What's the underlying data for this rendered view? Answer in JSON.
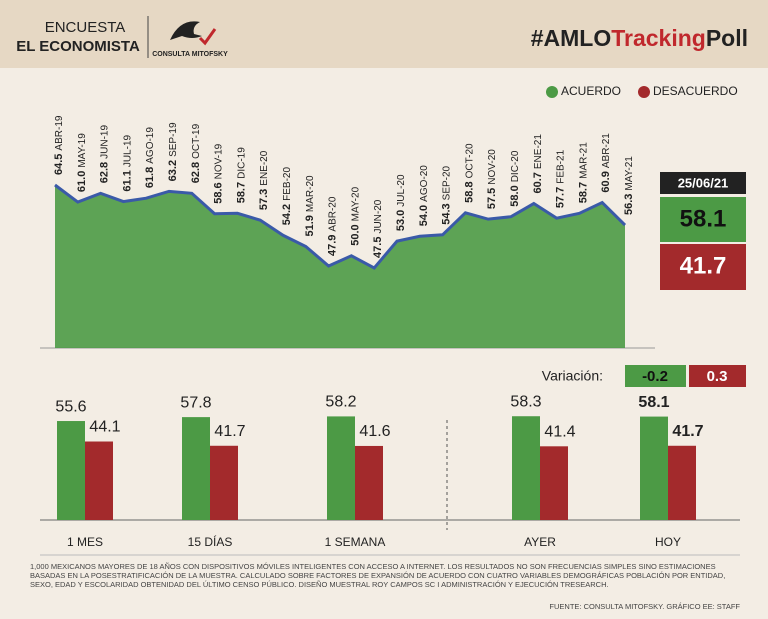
{
  "header": {
    "left_top": "ENCUESTA",
    "left_bottom": "EL ECONOMISTA",
    "logo": "CONSULTA MITOFSKY",
    "hashtag_prefix": "#AMLO",
    "hashtag_highlight": "Tracking",
    "hashtag_suffix": "Poll"
  },
  "chart_data": [
    {
      "type": "line",
      "legend": [
        {
          "name": "ACUERDO",
          "color": "#4c9a45"
        },
        {
          "name": "DESACUERDO",
          "color": "#a32a2c"
        }
      ],
      "categories": [
        "ABR-19",
        "MAY-19",
        "JUN-19",
        "JUL-19",
        "AGO-19",
        "SEP-19",
        "OCT-19",
        "NOV-19",
        "DIC-19",
        "ENE-20",
        "FEB-20",
        "MAR-20",
        "ABR-20",
        "MAY-20",
        "JUN-20",
        "JUL-20",
        "AGO-20",
        "SEP-20",
        "OCT-20",
        "NOV-20",
        "DIC-20",
        "ENE-21",
        "FEB-21",
        "MAR-21",
        "ABR-21",
        "MAY-21"
      ],
      "series": [
        {
          "name": "ACUERDO",
          "color": "#3a5aa8",
          "area_color": "#4c9a45",
          "values": [
            64.5,
            61.0,
            62.8,
            61.1,
            61.8,
            63.2,
            62.8,
            58.6,
            58.7,
            57.3,
            54.2,
            51.9,
            47.9,
            50.0,
            47.5,
            53.0,
            54.0,
            54.3,
            58.8,
            57.5,
            58.0,
            60.7,
            57.7,
            58.7,
            60.9,
            56.3
          ],
          "value_labels": [
            "64.5",
            "61.0",
            "62.8",
            "61.1",
            "61.8",
            "63.2",
            "62.8",
            "58.6",
            "58.7",
            "57.3",
            "54.2",
            "51.9",
            "47.9",
            "50.0",
            "47.5",
            "53.0",
            "54.0",
            "54.3",
            "58.8",
            "57.5",
            "58.0",
            "60.7",
            "57.7",
            "58.7",
            "60.9",
            "56.3"
          ]
        }
      ]
    },
    {
      "type": "bar",
      "categories": [
        "1 MES",
        "15 DÍAS",
        "1 SEMANA",
        "AYER",
        "HOY"
      ],
      "series": [
        {
          "name": "ACUERDO",
          "color": "#4c9a45",
          "values": [
            55.6,
            57.8,
            58.2,
            58.3,
            58.1
          ]
        },
        {
          "name": "DESACUERDO",
          "color": "#a32a2c",
          "values": [
            44.1,
            41.7,
            41.6,
            41.4,
            41.7
          ]
        }
      ]
    }
  ],
  "current": {
    "date": "25/06/21",
    "acuerdo": 58.1,
    "desacuerdo": 41.7
  },
  "variation": {
    "label": "Variación:",
    "acuerdo": -0.2,
    "desacuerdo": 0.3
  },
  "footnote": "1,000 MEXICANOS MAYORES DE 18 AÑOS CON DISPOSITIVOS MÓVILES INTELIGENTES CON ACCESO A INTERNET. LOS RESULTADOS NO SON FRECUENCIAS SIMPLES SINO ESTIMACIONES BASADAS EN LA POSESTRATIFICACIÓN DE LA MUESTRA. CALCULADO SOBRE FACTORES DE EXPANSIÓN DE ACUERDO CON CUATRO VARIABLES DEMOGRÁFICAS POBLACIÓN POR ENTIDAD, SEXO, EDAD Y ESCOLARIDAD OBTENIDAD DEL ÚLTIMO CENSO PÚBLICO. DISEÑO MUESTRAL ROY CAMPOS SC I ADMINISTRACIÓN Y EJECUCIÓN TRESEARCH.",
  "source": "FUENTE: CONSULTA MITOFSKY. GRÁFICO EE: STAFF"
}
